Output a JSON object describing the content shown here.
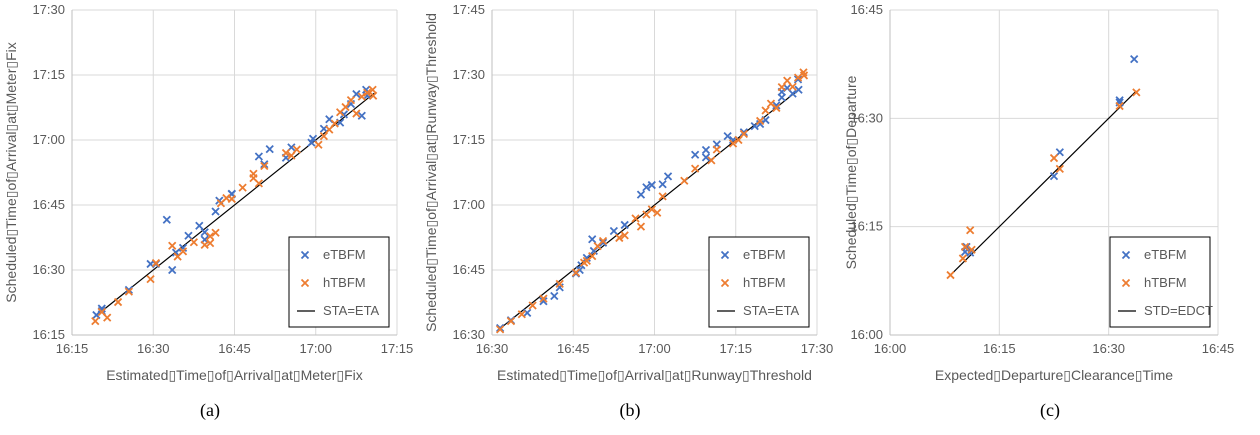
{
  "colors": {
    "eTBFM": "#4472C4",
    "hTBFM": "#ED7D31",
    "line": "#000000",
    "grid": "#D9D9D9",
    "axis": "#BFBFBF",
    "text": "#595959"
  },
  "chart_data": [
    {
      "type": "scatter",
      "caption": "(a)",
      "xlabel": "Estimated▯Time▯of▯Arrival▯at▯Meter▯Fix",
      "ylabel": "Scheduled▯Time▯of▯Arrival▯at▯Meter▯Fix",
      "xlim": [
        975,
        1035
      ],
      "ylim": [
        975,
        1050
      ],
      "xticks": [
        975,
        990,
        1005,
        1020,
        1035
      ],
      "yticks": [
        975,
        990,
        1005,
        1020,
        1035,
        1050
      ],
      "xtick_labels": [
        "16:15",
        "16:30",
        "16:45",
        "17:00",
        "17:15"
      ],
      "ytick_labels": [
        "16:15",
        "16:30",
        "16:45",
        "17:00",
        "17:15",
        "17:30"
      ],
      "grid": true,
      "legend": {
        "position": "bottom-right",
        "entries": [
          "eTBFM",
          "hTBFM",
          "STA=ETA"
        ]
      },
      "reference_line": {
        "name": "STA=ETA",
        "x": [
          979.3,
          1030.8
        ],
        "y": [
          979.3,
          1030.8
        ]
      },
      "series": [
        {
          "name": "eTBFM",
          "marker": "x",
          "points": [
            [
              979.5,
              979.6
            ],
            [
              980.5,
              981.1
            ],
            [
              980.5,
              980.5
            ],
            [
              985.5,
              985.4
            ],
            [
              989.5,
              991.4
            ],
            [
              990.5,
              991.4
            ],
            [
              992.5,
              1001.6
            ],
            [
              993.5,
              990.0
            ],
            [
              994.2,
              994.0
            ],
            [
              995.5,
              995.1
            ],
            [
              996.5,
              997.9
            ],
            [
              998.5,
              1000.2
            ],
            [
              999.5,
              998.7
            ],
            [
              999.5,
              997.0
            ],
            [
              1001.5,
              1003.5
            ],
            [
              1002.2,
              1006.0
            ],
            [
              1004.5,
              1007.6
            ],
            [
              1004.5,
              1007.5
            ],
            [
              1009.5,
              1016.2
            ],
            [
              1010.5,
              1014.4
            ],
            [
              1011.5,
              1017.9
            ],
            [
              1014.5,
              1015.9
            ],
            [
              1015.5,
              1018.3
            ],
            [
              1019.2,
              1019.4
            ],
            [
              1019.5,
              1020.3
            ],
            [
              1021.5,
              1022.6
            ],
            [
              1022.5,
              1024.8
            ],
            [
              1024.5,
              1024.0
            ],
            [
              1025.2,
              1025.9
            ],
            [
              1026.5,
              1028.3
            ],
            [
              1027.5,
              1030.6
            ],
            [
              1028.5,
              1025.6
            ],
            [
              1029.3,
              1031.6
            ],
            [
              1029.5,
              1030.2
            ]
          ]
        },
        {
          "name": "hTBFM",
          "marker": "x",
          "points": [
            [
              979.3,
              978.2
            ],
            [
              980.5,
              980.3
            ],
            [
              981.5,
              979.0
            ],
            [
              983.5,
              982.6
            ],
            [
              985.5,
              985.0
            ],
            [
              989.5,
              987.9
            ],
            [
              990.5,
              991.6
            ],
            [
              993.5,
              995.6
            ],
            [
              994.5,
              993.1
            ],
            [
              995.5,
              994.3
            ],
            [
              997.5,
              996.4
            ],
            [
              999.5,
              995.8
            ],
            [
              1000.5,
              996.2
            ],
            [
              1000.5,
              997.8
            ],
            [
              1001.5,
              998.6
            ],
            [
              1002.5,
              1005.4
            ],
            [
              1003.5,
              1006.6
            ],
            [
              1004.5,
              1006.4
            ],
            [
              1006.5,
              1009.0
            ],
            [
              1008.5,
              1012.2
            ],
            [
              1008.5,
              1011.2
            ],
            [
              1009.5,
              1010.0
            ],
            [
              1010.5,
              1014.0
            ],
            [
              1014.5,
              1017.0
            ],
            [
              1015.5,
              1016.4
            ],
            [
              1016.5,
              1017.8
            ],
            [
              1020.5,
              1018.9
            ],
            [
              1021.5,
              1020.9
            ],
            [
              1022.5,
              1022.4
            ],
            [
              1023.5,
              1023.8
            ],
            [
              1024.5,
              1026.4
            ],
            [
              1025.5,
              1027.6
            ],
            [
              1026.5,
              1029.2
            ],
            [
              1027.5,
              1026.1
            ],
            [
              1028.5,
              1030.0
            ],
            [
              1029.5,
              1030.9
            ],
            [
              1030.5,
              1031.6
            ],
            [
              1030.6,
              1030.2
            ]
          ]
        }
      ]
    },
    {
      "type": "scatter",
      "caption": "(b)",
      "xlabel": "Estimated▯Time▯of▯Arrival▯at▯Runway▯Threshold",
      "ylabel": "Scheduled▯Time▯of▯Arrival▯at▯Runway▯Threshold",
      "xlim": [
        990,
        1050
      ],
      "ylim": [
        990,
        1065
      ],
      "xticks": [
        990,
        1005,
        1020,
        1035,
        1050
      ],
      "yticks": [
        990,
        1005,
        1020,
        1035,
        1050,
        1065
      ],
      "xtick_labels": [
        "16:30",
        "16:45",
        "17:00",
        "17:15",
        "17:30"
      ],
      "ytick_labels": [
        "16:30",
        "16:45",
        "17:00",
        "17:15",
        "17:30",
        "17:45"
      ],
      "grid": true,
      "legend": {
        "position": "bottom-right",
        "entries": [
          "eTBFM",
          "hTBFM",
          "STA=ETA"
        ]
      },
      "reference_line": {
        "name": "STA=ETA",
        "x": [
          991.0,
          1046.6
        ],
        "y": [
          991.0,
          1046.6
        ]
      },
      "series": [
        {
          "name": "eTBFM",
          "marker": "x",
          "points": [
            [
              991.5,
              991.6
            ],
            [
              993.5,
              993.4
            ],
            [
              996.5,
              995.1
            ],
            [
              999.5,
              997.8
            ],
            [
              1001.5,
              999.0
            ],
            [
              1002.5,
              1001.0
            ],
            [
              1005.5,
              1004.2
            ],
            [
              1006.2,
              1005.0
            ],
            [
              1006.5,
              1006.1
            ],
            [
              1007.5,
              1007.8
            ],
            [
              1008.5,
              1012.1
            ],
            [
              1008.8,
              1009.4
            ],
            [
              1010.5,
              1011.3
            ],
            [
              1012.5,
              1014.0
            ],
            [
              1014.5,
              1015.4
            ],
            [
              1017.5,
              1022.4
            ],
            [
              1018.5,
              1024.1
            ],
            [
              1019.5,
              1024.6
            ],
            [
              1021.5,
              1024.8
            ],
            [
              1022.5,
              1026.6
            ],
            [
              1027.5,
              1031.6
            ],
            [
              1029.5,
              1032.7
            ],
            [
              1029.5,
              1031.0
            ],
            [
              1031.5,
              1034.0
            ],
            [
              1033.5,
              1035.9
            ],
            [
              1034.5,
              1035.0
            ],
            [
              1036.5,
              1036.8
            ],
            [
              1038.5,
              1038.2
            ],
            [
              1039.5,
              1038.7
            ],
            [
              1040.5,
              1039.6
            ],
            [
              1042.5,
              1043.0
            ],
            [
              1043.5,
              1044.8
            ],
            [
              1043.5,
              1046.1
            ],
            [
              1044.5,
              1047.0
            ],
            [
              1045.5,
              1045.7
            ],
            [
              1046.5,
              1049.0
            ],
            [
              1046.6,
              1046.6
            ]
          ]
        },
        {
          "name": "hTBFM",
          "marker": "x",
          "points": [
            [
              991.5,
              991.3
            ],
            [
              993.5,
              993.2
            ],
            [
              995.5,
              994.8
            ],
            [
              997.5,
              996.8
            ],
            [
              999.5,
              998.4
            ],
            [
              1002.5,
              1001.8
            ],
            [
              1005.5,
              1004.4
            ],
            [
              1007.0,
              1006.7
            ],
            [
              1007.5,
              1007.1
            ],
            [
              1008.5,
              1008.2
            ],
            [
              1009.5,
              1010.5
            ],
            [
              1010.5,
              1011.7
            ],
            [
              1013.5,
              1012.4
            ],
            [
              1014.5,
              1013.0
            ],
            [
              1016.5,
              1016.9
            ],
            [
              1017.5,
              1015.0
            ],
            [
              1018.5,
              1017.8
            ],
            [
              1019.5,
              1019.0
            ],
            [
              1020.5,
              1018.2
            ],
            [
              1021.5,
              1022.0
            ],
            [
              1025.5,
              1025.6
            ],
            [
              1027.5,
              1028.4
            ],
            [
              1030.5,
              1030.3
            ],
            [
              1031.5,
              1032.8
            ],
            [
              1034.5,
              1034.2
            ],
            [
              1035.5,
              1035.0
            ],
            [
              1036.5,
              1036.4
            ],
            [
              1039.5,
              1039.4
            ],
            [
              1040.5,
              1041.8
            ],
            [
              1041.5,
              1043.4
            ],
            [
              1042.5,
              1042.4
            ],
            [
              1043.5,
              1047.2
            ],
            [
              1044.5,
              1048.7
            ],
            [
              1045.5,
              1047.3
            ],
            [
              1046.5,
              1049.4
            ],
            [
              1047.5,
              1050.6
            ],
            [
              1047.6,
              1049.9
            ]
          ]
        }
      ]
    },
    {
      "type": "scatter",
      "caption": "(c)",
      "xlabel": "Expected▯Departure▯Clearance▯Time",
      "ylabel": "Scheduled▯Time▯of▯Departure",
      "xlim": [
        960,
        1005
      ],
      "ylim": [
        960,
        1005
      ],
      "xticks": [
        960,
        975,
        990,
        1005
      ],
      "yticks": [
        960,
        975,
        990,
        1005
      ],
      "xtick_labels": [
        "16:00",
        "16:15",
        "16:30",
        "16:45"
      ],
      "ytick_labels": [
        "16:00",
        "16:15",
        "16:30",
        "16:45"
      ],
      "grid": true,
      "legend": {
        "position": "bottom-right",
        "entries": [
          "eTBFM",
          "hTBFM",
          "STD=EDCT"
        ]
      },
      "reference_line": {
        "name": "STD=EDCT",
        "x": [
          968.3,
          993.8
        ],
        "y": [
          968.3,
          993.8
        ]
      },
      "series": [
        {
          "name": "eTBFM",
          "marker": "x",
          "points": [
            [
              970.3,
              971.5
            ],
            [
              970.5,
              972.2
            ],
            [
              971.0,
              971.4
            ],
            [
              982.5,
              982.0
            ],
            [
              983.3,
              985.3
            ],
            [
              991.5,
              992.2
            ],
            [
              991.5,
              992.5
            ],
            [
              993.5,
              998.2
            ]
          ]
        },
        {
          "name": "hTBFM",
          "marker": "x",
          "points": [
            [
              968.3,
              968.3
            ],
            [
              970.0,
              970.6
            ],
            [
              970.3,
              972.2
            ],
            [
              971.0,
              974.5
            ],
            [
              971.2,
              971.8
            ],
            [
              982.5,
              984.5
            ],
            [
              983.3,
              983.0
            ],
            [
              991.5,
              991.7
            ],
            [
              993.8,
              993.6
            ]
          ]
        }
      ]
    }
  ]
}
